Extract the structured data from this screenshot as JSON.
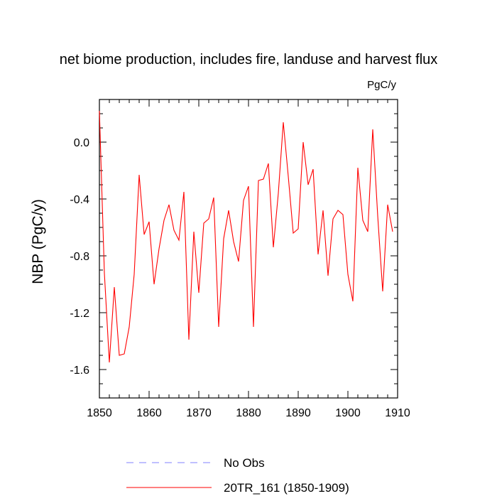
{
  "chart_data": {
    "type": "line",
    "title": "net biome production, includes fire, landuse and harvest flux",
    "units_label": "PgC/y",
    "ylabel": "NBP  (PgC/y)",
    "xlabel": "",
    "xlim": [
      1850,
      1910
    ],
    "ylim": [
      -1.8,
      0.3
    ],
    "x_ticks": [
      1850,
      1860,
      1870,
      1880,
      1890,
      1900,
      1910
    ],
    "x_tick_labels": [
      "1850",
      "1860",
      "1870",
      "1880",
      "1890",
      "1900",
      "1910"
    ],
    "y_ticks": [
      -1.6,
      -1.2,
      -0.8,
      -0.4,
      0.0
    ],
    "y_tick_labels": [
      "-1.6",
      "-1.2",
      "-0.8",
      "-0.4",
      "0.0"
    ],
    "grid": false,
    "legend_position": "bottom",
    "legend": [
      {
        "name": "No Obs",
        "color": "#8080ff",
        "style": "dashed"
      },
      {
        "name": "20TR_161 (1850-1909)",
        "color": "#ff0000",
        "style": "solid"
      }
    ],
    "series": [
      {
        "name": "20TR_161 (1850-1909)",
        "color": "#ff0000",
        "x": [
          1850,
          1851,
          1852,
          1853,
          1854,
          1855,
          1856,
          1857,
          1858,
          1859,
          1860,
          1861,
          1862,
          1863,
          1864,
          1865,
          1866,
          1867,
          1868,
          1869,
          1870,
          1871,
          1872,
          1873,
          1874,
          1875,
          1876,
          1877,
          1878,
          1879,
          1880,
          1881,
          1882,
          1883,
          1884,
          1885,
          1886,
          1887,
          1888,
          1889,
          1890,
          1891,
          1892,
          1893,
          1894,
          1895,
          1896,
          1897,
          1898,
          1899,
          1900,
          1901,
          1902,
          1903,
          1904,
          1905,
          1906,
          1907,
          1908,
          1909
        ],
        "values": [
          0.22,
          -0.92,
          -1.55,
          -1.02,
          -1.5,
          -1.49,
          -1.3,
          -0.93,
          -0.23,
          -0.65,
          -0.56,
          -1.0,
          -0.75,
          -0.55,
          -0.44,
          -0.62,
          -0.69,
          -0.35,
          -1.39,
          -0.63,
          -1.06,
          -0.57,
          -0.54,
          -0.39,
          -1.3,
          -0.68,
          -0.48,
          -0.7,
          -0.84,
          -0.41,
          -0.31,
          -1.3,
          -0.27,
          -0.26,
          -0.15,
          -0.74,
          -0.36,
          0.14,
          -0.24,
          -0.64,
          -0.61,
          0.0,
          -0.3,
          -0.19,
          -0.79,
          -0.48,
          -0.94,
          -0.54,
          -0.48,
          -0.51,
          -0.93,
          -1.12,
          -0.18,
          -0.55,
          -0.63,
          0.09,
          -0.52,
          -1.05,
          -0.44,
          -0.63
        ]
      }
    ]
  }
}
